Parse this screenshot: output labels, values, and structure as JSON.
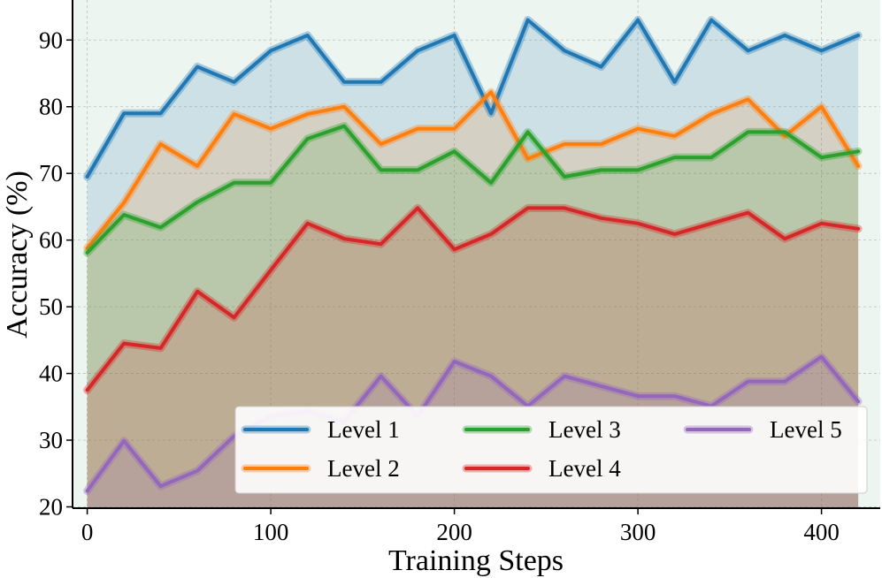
{
  "chart_data": {
    "type": "area",
    "title": "",
    "xlabel": "Training Steps",
    "ylabel": "Accuracy (%)",
    "xlim": [
      -8,
      432
    ],
    "ylim": [
      19.8,
      96
    ],
    "xticks": [
      0,
      100,
      200,
      300,
      400
    ],
    "yticks": [
      20,
      30,
      40,
      50,
      60,
      70,
      80,
      90
    ],
    "grid": true,
    "legend_position": "lower-right",
    "x": [
      0,
      20,
      40,
      60,
      80,
      100,
      120,
      140,
      160,
      180,
      200,
      220,
      240,
      260,
      280,
      300,
      320,
      340,
      360,
      380,
      400,
      420
    ],
    "series": [
      {
        "name": "Level 1",
        "color": "#1f77b4",
        "values": [
          69.5,
          79.0,
          79.0,
          86.0,
          83.7,
          88.4,
          90.7,
          83.7,
          83.7,
          88.4,
          90.7,
          79.0,
          93.0,
          88.4,
          86.0,
          93.0,
          83.7,
          93.0,
          88.4,
          90.7,
          88.4,
          90.7
        ]
      },
      {
        "name": "Level 2",
        "color": "#ff7f0e",
        "values": [
          58.8,
          65.6,
          74.4,
          71.1,
          78.9,
          76.7,
          78.9,
          80.0,
          74.4,
          76.7,
          76.7,
          82.2,
          72.2,
          74.4,
          74.4,
          76.7,
          75.6,
          78.9,
          81.1,
          75.6,
          80.0,
          71.1
        ]
      },
      {
        "name": "Level 3",
        "color": "#2ca02c",
        "values": [
          58.1,
          63.8,
          61.9,
          65.7,
          68.6,
          68.6,
          75.2,
          77.1,
          70.5,
          70.5,
          73.3,
          68.6,
          76.2,
          69.5,
          70.5,
          70.5,
          72.4,
          72.4,
          76.2,
          76.2,
          72.4,
          73.3
        ]
      },
      {
        "name": "Level 4",
        "color": "#d62728",
        "values": [
          37.5,
          44.5,
          43.8,
          52.3,
          48.4,
          55.5,
          62.5,
          60.2,
          59.4,
          64.8,
          58.6,
          60.9,
          64.8,
          64.8,
          63.3,
          62.5,
          60.9,
          62.5,
          64.1,
          60.2,
          62.5,
          61.7
        ]
      },
      {
        "name": "Level 5",
        "color": "#9467bd",
        "values": [
          22.4,
          29.9,
          23.1,
          25.4,
          30.6,
          33.6,
          34.3,
          32.8,
          39.6,
          33.6,
          41.8,
          39.6,
          35.1,
          39.6,
          38.1,
          36.6,
          36.6,
          35.1,
          38.8,
          38.8,
          42.5,
          35.8
        ]
      }
    ]
  }
}
